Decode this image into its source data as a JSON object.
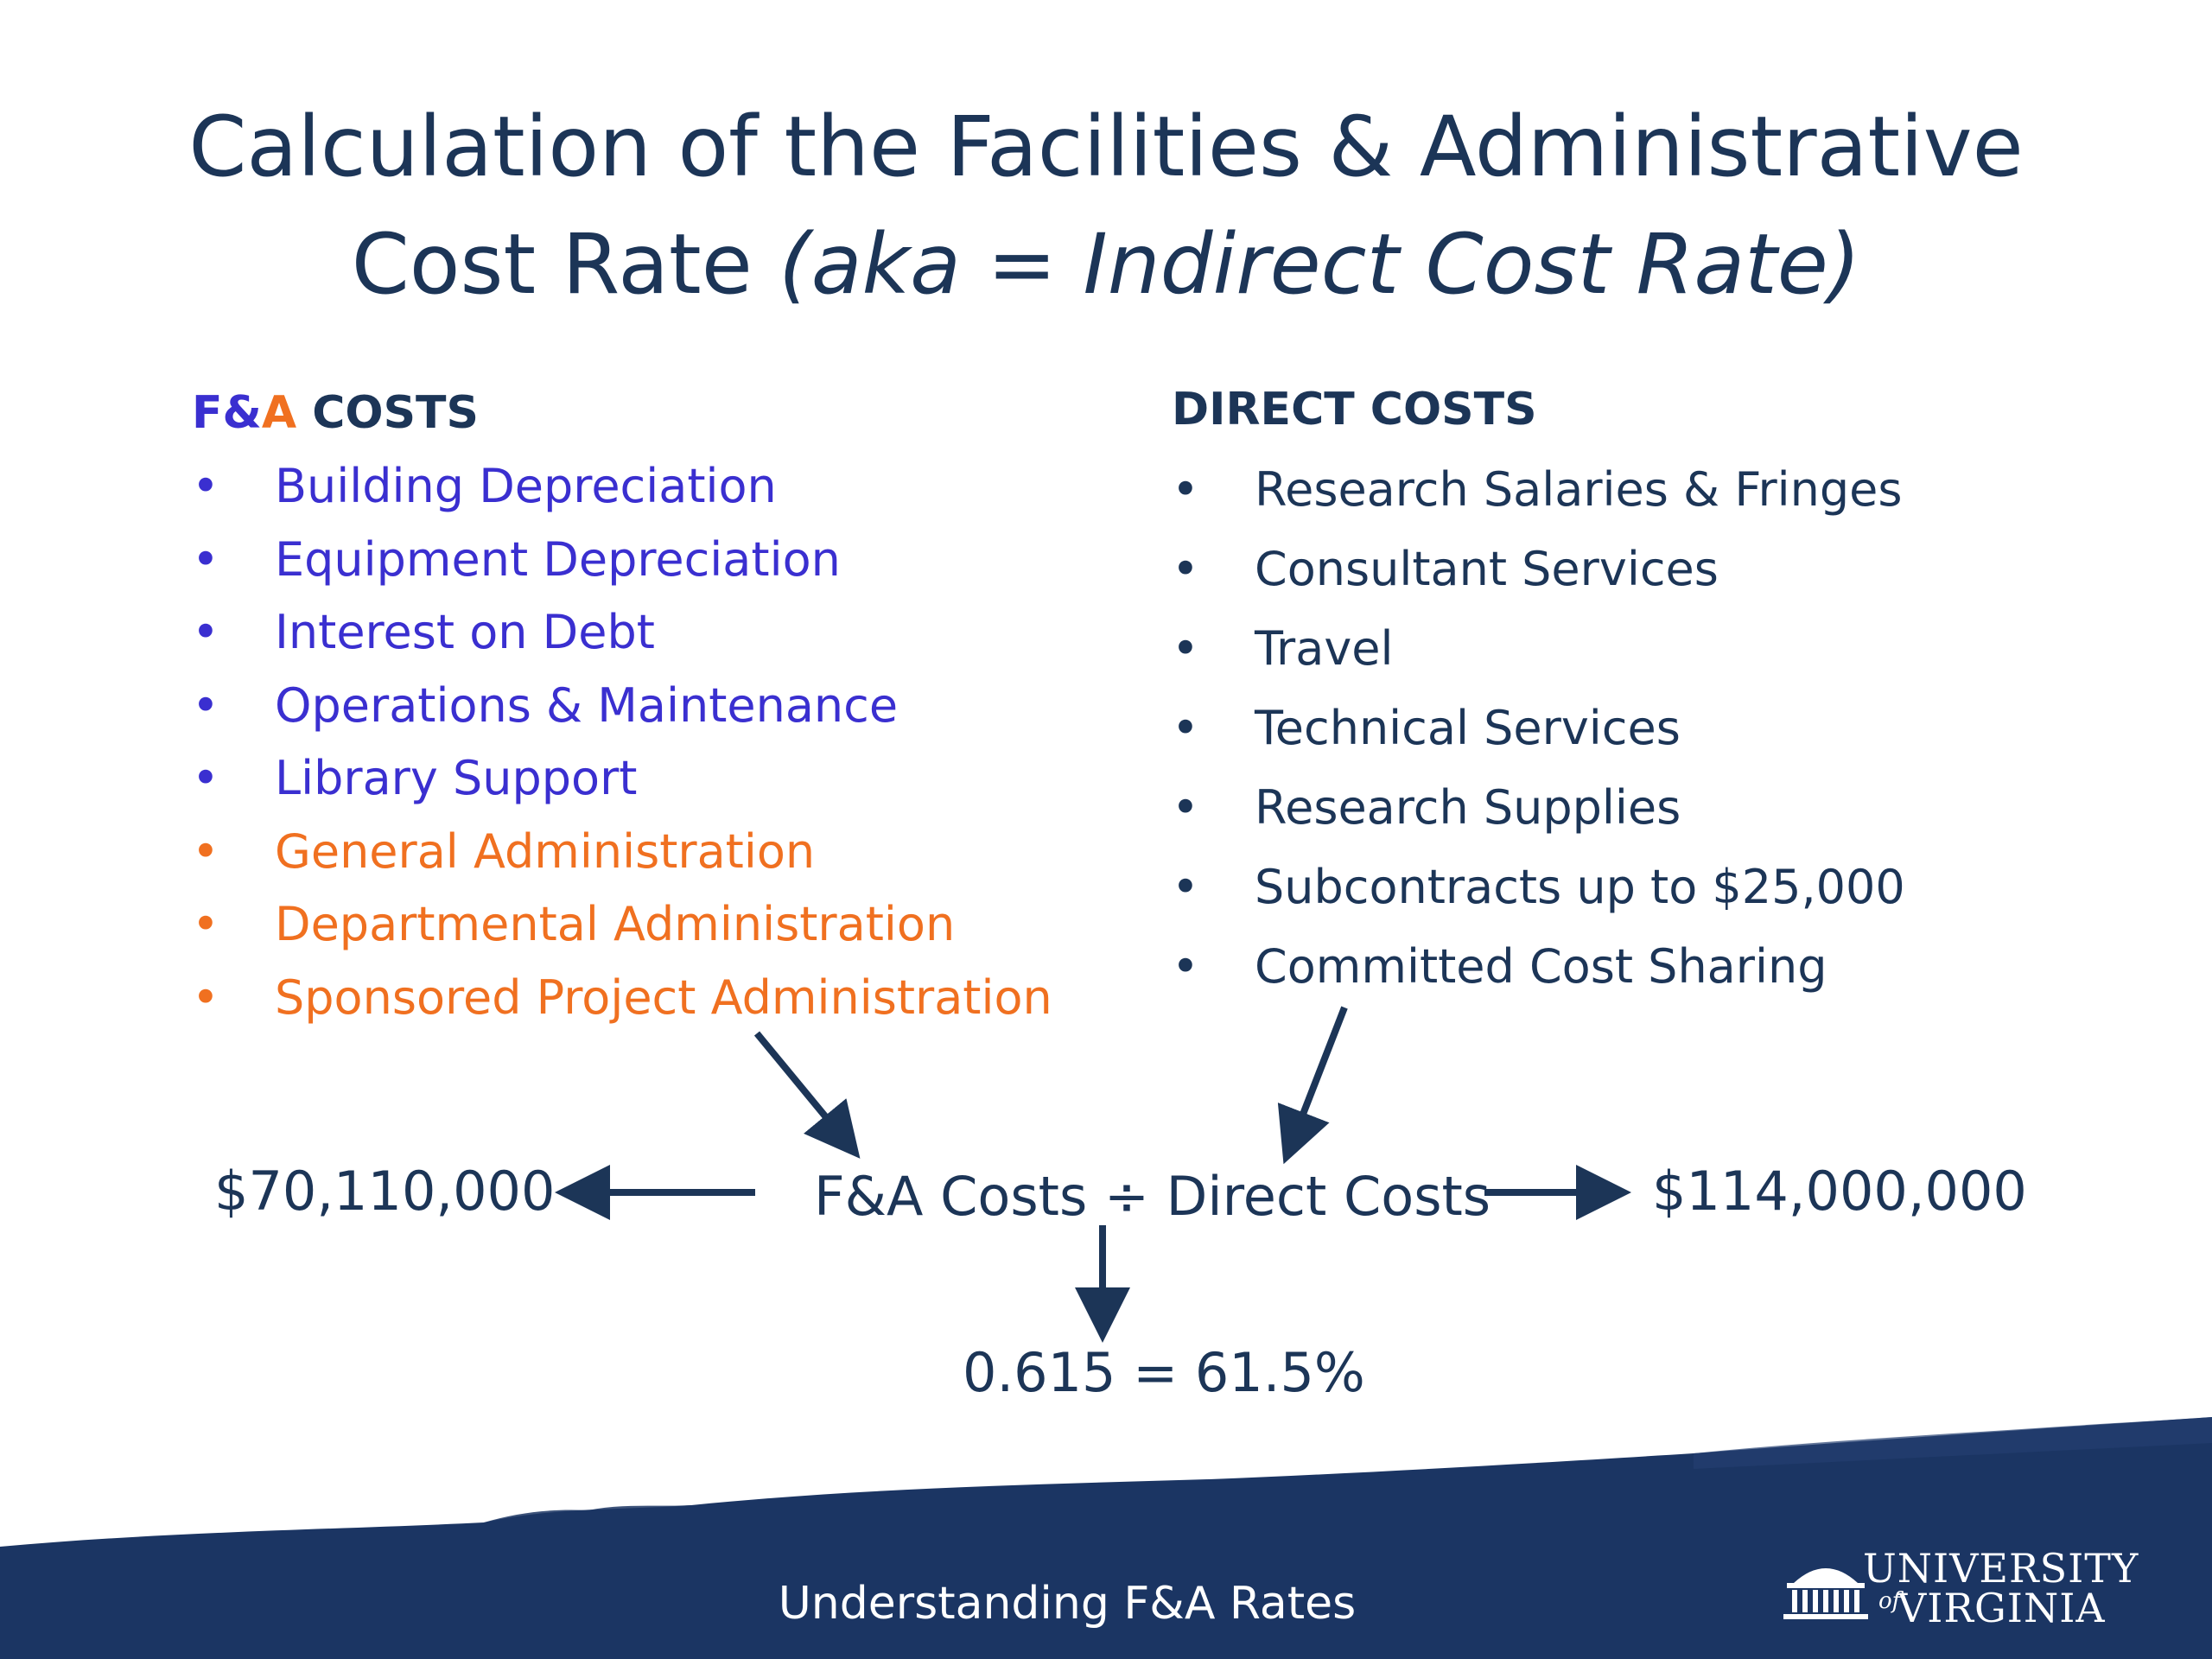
{
  "title": {
    "line1": "Calculation of the Facilities & Administrative",
    "line2_plain": "Cost Rate",
    "line2_italic": "(aka = Indirect Cost Rate)"
  },
  "fa_costs": {
    "heading_f": "F&",
    "heading_a": "A",
    "heading_rest": " COSTS",
    "bullet": "•",
    "items": [
      {
        "label": "Building Depreciation",
        "group": "facilities"
      },
      {
        "label": "Equipment Depreciation",
        "group": "facilities"
      },
      {
        "label": "Interest on Debt",
        "group": "facilities"
      },
      {
        "label": "Operations & Maintenance",
        "group": "facilities"
      },
      {
        "label": "Library Support",
        "group": "facilities"
      },
      {
        "label": "General Administration",
        "group": "administrative"
      },
      {
        "label": "Departmental Administration",
        "group": "administrative"
      },
      {
        "label": "Sponsored Project Administration",
        "group": "administrative"
      }
    ]
  },
  "direct_costs": {
    "heading": "DIRECT COSTS",
    "bullet": "•",
    "items": [
      {
        "label": "Research Salaries & Fringes"
      },
      {
        "label": "Consultant Services"
      },
      {
        "label": "Travel"
      },
      {
        "label": "Technical Services"
      },
      {
        "label": "Research Supplies"
      },
      {
        "label": "Subcontracts up to $25,000"
      },
      {
        "label": "Committed Cost Sharing"
      }
    ]
  },
  "calculation": {
    "fa_total": "$70,110,000",
    "formula": "F&A Costs ÷ Direct Costs",
    "direct_total": "$114,000,000",
    "result": "0.615 = 61.5%"
  },
  "footer": {
    "text": "Understanding F&A Rates",
    "logo_line1": "UNIVERSITY",
    "logo_of": "of",
    "logo_line2": "VIRGINIA"
  },
  "colors": {
    "navy": "#1c3557",
    "facilities_blue": "#3a2fd0",
    "administrative_orange": "#f07020",
    "band_navy": "#1b3563"
  },
  "icons": [
    "arrow-icon",
    "rotunda-logo-icon"
  ]
}
